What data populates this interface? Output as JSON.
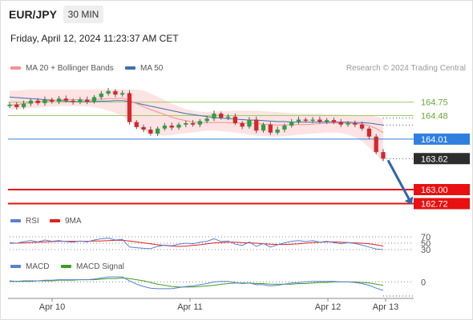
{
  "header": {
    "symbol": "EUR/JPY",
    "timeframe": "30 MIN",
    "datetime": "Friday, April 12, 2024 11:23:37 AM CET"
  },
  "legend": {
    "ma20": {
      "label": "MA 20 + Bollinger Bands",
      "color": "#f4918f"
    },
    "ma50": {
      "label": "MA 50",
      "color": "#3c6fb0"
    },
    "rsi": {
      "label": "RSI",
      "color": "#5b7fd6"
    },
    "rsi_ma": {
      "label": "9MA",
      "color": "#e02020"
    },
    "macd": {
      "label": "MACD",
      "color": "#5b7fd6"
    },
    "macd_signal": {
      "label": "MACD Signal",
      "color": "#3aa020"
    }
  },
  "credit": "Research © 2024 Trading Central",
  "chart_data": {
    "type": "candlestick",
    "y_range": [
      162.6,
      165.0
    ],
    "x_labels": [
      "Apr 10",
      "Apr 11",
      "Apr 12",
      "Apr 13"
    ],
    "current_price": "163.62",
    "levels": [
      {
        "value": 164.75,
        "label": "164.75",
        "kind": "resistance",
        "color": "#9acd67"
      },
      {
        "value": 164.48,
        "label": "164.48",
        "kind": "resistance",
        "color": "#9acd67"
      },
      {
        "value": 164.01,
        "label": "164.01",
        "kind": "pivot",
        "color": "#2f7fe0"
      },
      {
        "value": 163.0,
        "label": "163.00",
        "kind": "support",
        "color": "#e81010"
      },
      {
        "value": 162.72,
        "label": "162.72",
        "kind": "support",
        "color": "#e81010"
      }
    ],
    "price_series": [
      164.7,
      164.65,
      164.72,
      164.78,
      164.73,
      164.8,
      164.76,
      164.82,
      164.78,
      164.75,
      164.8,
      164.76,
      164.85,
      164.92,
      164.97,
      164.9,
      164.93,
      164.35,
      164.25,
      164.2,
      164.12,
      164.22,
      164.28,
      164.24,
      164.3,
      164.33,
      164.3,
      164.37,
      164.42,
      164.52,
      164.44,
      164.46,
      164.33,
      164.26,
      164.4,
      164.18,
      164.3,
      164.14,
      164.2,
      164.28,
      164.36,
      164.4,
      164.38,
      164.4,
      164.36,
      164.39,
      164.35,
      164.3,
      164.33,
      164.3,
      164.22,
      164.06,
      163.75,
      163.62
    ],
    "ma20": [
      164.69,
      164.7,
      164.72,
      164.74,
      164.76,
      164.77,
      164.78,
      164.79,
      164.8,
      164.8,
      164.8,
      164.79,
      164.8,
      164.81,
      164.82,
      164.82,
      164.83,
      164.78,
      164.72,
      164.66,
      164.6,
      164.55,
      164.5,
      164.45,
      164.41,
      164.38,
      164.35,
      164.34,
      164.34,
      164.34,
      164.34,
      164.34,
      164.33,
      164.33,
      164.33,
      164.32,
      164.31,
      164.3,
      164.29,
      164.29,
      164.3,
      164.3,
      164.3,
      164.31,
      164.32,
      164.33,
      164.33,
      164.33,
      164.33,
      164.32,
      164.31,
      164.28,
      164.22,
      164.14
    ],
    "ma50": [
      164.85,
      164.84,
      164.83,
      164.82,
      164.81,
      164.8,
      164.79,
      164.78,
      164.77,
      164.76,
      164.76,
      164.76,
      164.76,
      164.77,
      164.77,
      164.78,
      164.78,
      164.76,
      164.73,
      164.7,
      164.67,
      164.64,
      164.61,
      164.58,
      164.55,
      164.52,
      164.5,
      164.48,
      164.46,
      164.44,
      164.43,
      164.42,
      164.41,
      164.4,
      164.39,
      164.39,
      164.38,
      164.37,
      164.36,
      164.36,
      164.35,
      164.35,
      164.35,
      164.35,
      164.35,
      164.35,
      164.35,
      164.35,
      164.35,
      164.34,
      164.34,
      164.33,
      164.31,
      164.29
    ],
    "bb_upper": [
      164.98,
      164.98,
      164.99,
      165.0,
      165.0,
      165.0,
      165.0,
      165.0,
      165.0,
      165.0,
      165.0,
      165.0,
      165.0,
      165.0,
      165.0,
      165.0,
      165.0,
      165.0,
      165.0,
      164.98,
      164.92,
      164.86,
      164.79,
      164.72,
      164.66,
      164.61,
      164.58,
      164.56,
      164.55,
      164.56,
      164.57,
      164.57,
      164.58,
      164.58,
      164.58,
      164.58,
      164.57,
      164.56,
      164.55,
      164.54,
      164.53,
      164.52,
      164.52,
      164.52,
      164.52,
      164.51,
      164.51,
      164.5,
      164.5,
      164.49,
      164.49,
      164.48,
      164.46,
      164.43
    ],
    "bb_lower": [
      164.6,
      164.61,
      164.62,
      164.63,
      164.64,
      164.65,
      164.66,
      164.67,
      164.67,
      164.67,
      164.67,
      164.66,
      164.65,
      164.62,
      164.58,
      164.53,
      164.47,
      164.38,
      164.27,
      164.18,
      164.12,
      164.09,
      164.08,
      164.09,
      164.11,
      164.13,
      164.14,
      164.16,
      164.18,
      164.18,
      164.17,
      164.16,
      164.14,
      164.12,
      164.1,
      164.08,
      164.07,
      164.06,
      164.06,
      164.07,
      164.08,
      164.1,
      164.11,
      164.12,
      164.13,
      164.14,
      164.14,
      164.13,
      164.1,
      164.05,
      163.97,
      163.85,
      163.7,
      163.55
    ],
    "forecast_arrow": {
      "from": 163.62,
      "to": 162.72
    },
    "rsi": {
      "levels": [
        70,
        50,
        30
      ],
      "range": [
        20,
        80
      ],
      "values": [
        52,
        50,
        55,
        58,
        54,
        60,
        56,
        58,
        55,
        53,
        57,
        54,
        60,
        64,
        66,
        60,
        62,
        38,
        36,
        34,
        33,
        40,
        44,
        42,
        47,
        50,
        48,
        53,
        56,
        64,
        55,
        57,
        47,
        43,
        54,
        40,
        49,
        38,
        45,
        51,
        56,
        58,
        55,
        58,
        53,
        56,
        52,
        48,
        52,
        49,
        44,
        38,
        32,
        30
      ],
      "ma9": [
        50,
        50,
        51,
        52,
        53,
        54,
        55,
        56,
        56,
        56,
        56,
        56,
        57,
        57,
        58,
        59,
        59,
        57,
        54,
        51,
        48,
        45,
        43,
        41,
        40,
        41,
        43,
        45,
        48,
        51,
        52,
        53,
        53,
        52,
        51,
        50,
        48,
        47,
        46,
        46,
        47,
        48,
        50,
        52,
        53,
        54,
        54,
        53,
        52,
        51,
        50,
        48,
        45,
        41
      ]
    },
    "macd": {
      "zero": 0,
      "range": [
        -0.25,
        0.12
      ],
      "macd": [
        0.02,
        0.01,
        0.02,
        0.02,
        0.02,
        0.03,
        0.03,
        0.04,
        0.04,
        0.04,
        0.04,
        0.04,
        0.05,
        0.07,
        0.09,
        0.09,
        0.09,
        0.02,
        -0.04,
        -0.08,
        -0.11,
        -0.12,
        -0.12,
        -0.12,
        -0.1,
        -0.08,
        -0.07,
        -0.05,
        -0.03,
        0.0,
        0.01,
        0.01,
        -0.01,
        -0.03,
        -0.02,
        -0.05,
        -0.05,
        -0.07,
        -0.06,
        -0.04,
        -0.02,
        -0.01,
        0.0,
        0.01,
        0.01,
        0.01,
        0.01,
        0.0,
        0.0,
        -0.01,
        -0.03,
        -0.06,
        -0.11,
        -0.15
      ],
      "signal": [
        0.01,
        0.01,
        0.01,
        0.01,
        0.02,
        0.02,
        0.02,
        0.03,
        0.03,
        0.03,
        0.04,
        0.04,
        0.04,
        0.05,
        0.06,
        0.06,
        0.07,
        0.06,
        0.04,
        0.02,
        -0.01,
        -0.04,
        -0.06,
        -0.08,
        -0.09,
        -0.09,
        -0.09,
        -0.08,
        -0.07,
        -0.06,
        -0.04,
        -0.03,
        -0.02,
        -0.02,
        -0.02,
        -0.03,
        -0.03,
        -0.04,
        -0.04,
        -0.04,
        -0.04,
        -0.03,
        -0.03,
        -0.02,
        -0.01,
        -0.01,
        0.0,
        0.0,
        0.0,
        0.0,
        -0.01,
        -0.02,
        -0.04,
        -0.06
      ]
    }
  }
}
